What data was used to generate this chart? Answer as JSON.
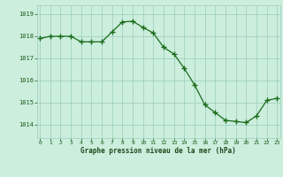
{
  "x": [
    0,
    1,
    2,
    3,
    4,
    5,
    6,
    7,
    8,
    9,
    10,
    11,
    12,
    13,
    14,
    15,
    16,
    17,
    18,
    19,
    20,
    21,
    22,
    23
  ],
  "y": [
    1017.9,
    1018.0,
    1018.0,
    1018.0,
    1017.75,
    1017.75,
    1017.75,
    1018.2,
    1018.65,
    1018.68,
    1018.4,
    1018.15,
    1017.5,
    1017.2,
    1016.55,
    1015.8,
    1014.9,
    1014.55,
    1014.2,
    1014.15,
    1014.1,
    1014.4,
    1015.1,
    1015.2
  ],
  "line_color": "#1a6b1a",
  "marker_color": "#1a6b1a",
  "bg_color": "#cceedd",
  "grid_color": "#99ccbb",
  "xlabel": "Graphe pression niveau de la mer (hPa)",
  "xlabel_color": "#1a4a1a",
  "tick_label_color": "#1a5a1a",
  "yticks": [
    1014,
    1015,
    1016,
    1017,
    1018,
    1019
  ],
  "xticks": [
    0,
    1,
    2,
    3,
    4,
    5,
    6,
    7,
    8,
    9,
    10,
    11,
    12,
    13,
    14,
    15,
    16,
    17,
    18,
    19,
    20,
    21,
    22,
    23
  ],
  "ylim": [
    1013.4,
    1019.4
  ],
  "xlim": [
    -0.3,
    23.3
  ]
}
